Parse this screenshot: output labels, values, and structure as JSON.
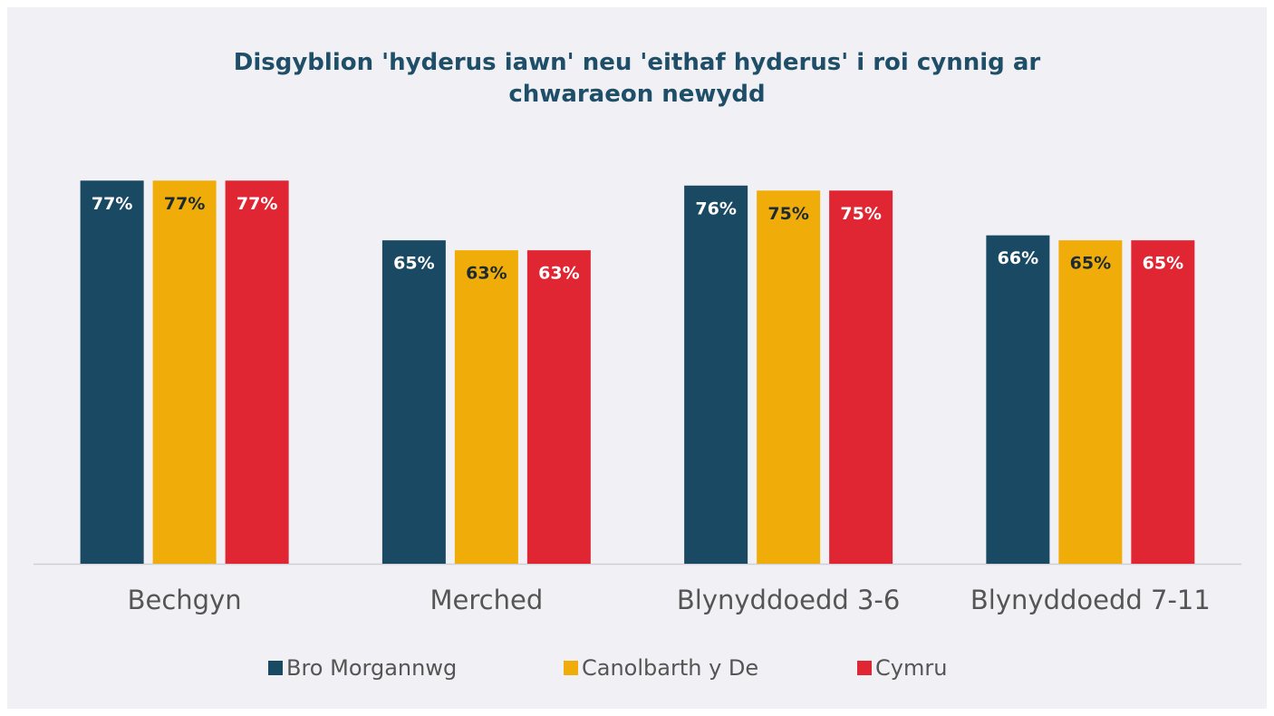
{
  "chart_data": {
    "type": "bar",
    "title": "Disgyblion 'hyderus iawn' neu 'eithaf hyderus' i roi cynnig ar chwaraeon newydd",
    "categories": [
      "Bechgyn",
      "Merched",
      "Blynyddoedd 3-6",
      "Blynyddoedd 7-11"
    ],
    "series": [
      {
        "name": "Bro Morgannwg",
        "color": "#1a4a63",
        "values": [
          77,
          65,
          76,
          66
        ],
        "value_labels": [
          "77%",
          "65%",
          "76%",
          "66%"
        ]
      },
      {
        "name": "Canolbarth y De",
        "color": "#f0ad0a",
        "values": [
          77,
          63,
          75,
          65
        ],
        "value_labels": [
          "77%",
          "63%",
          "75%",
          "65%"
        ]
      },
      {
        "name": "Cymru",
        "color": "#e02533",
        "values": [
          77,
          63,
          75,
          65
        ],
        "value_labels": [
          "77%",
          "63%",
          "75%",
          "65%"
        ]
      }
    ],
    "legend": "bottom"
  }
}
